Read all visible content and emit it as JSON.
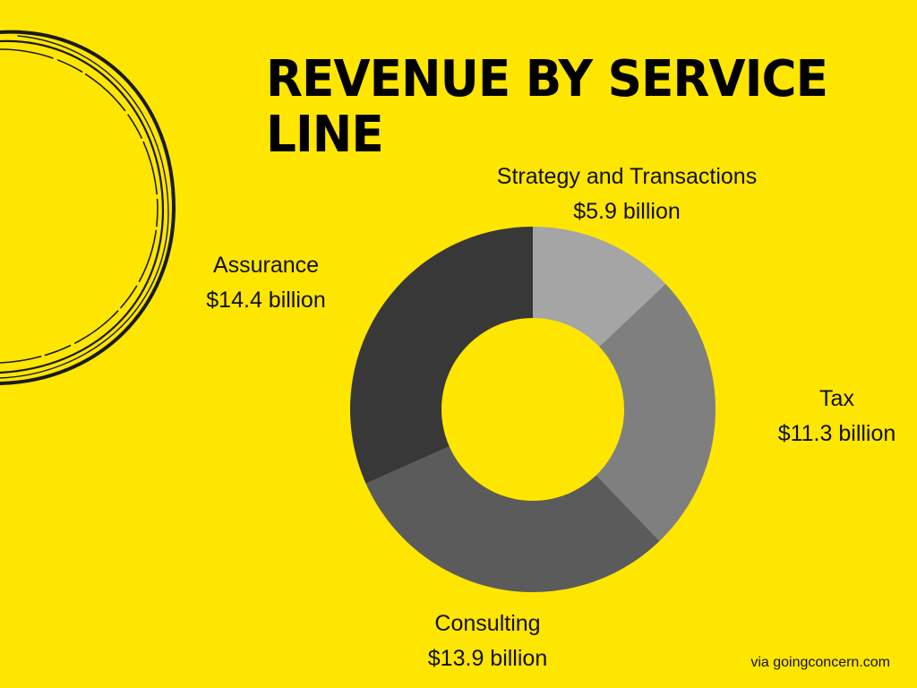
{
  "title": "REVENUE BY SERVICE LINE",
  "source": "via goingconcern.com",
  "colors": {
    "background": "#FFE600",
    "title": "#000000",
    "decoration": "#1a1a1a"
  },
  "labels": {
    "strategy": {
      "name": "Strategy and Transactions",
      "value": "$5.9 billion"
    },
    "tax": {
      "name": "Tax",
      "value": "$11.3 billion"
    },
    "consulting": {
      "name": "Consulting",
      "value": "$13.9 billion"
    },
    "assurance": {
      "name": "Assurance",
      "value": "$14.4 billion"
    }
  },
  "chart_data": {
    "type": "pie",
    "subtype": "donut",
    "title": "REVENUE BY SERVICE LINE",
    "unit": "billion USD",
    "categories": [
      "Strategy and Transactions",
      "Tax",
      "Consulting",
      "Assurance"
    ],
    "values": [
      5.9,
      11.3,
      13.9,
      14.4
    ],
    "colors": [
      "#A5A5A5",
      "#7F7F7F",
      "#5B5B5B",
      "#383838"
    ],
    "start_angle": "12 o'clock",
    "direction": "clockwise",
    "legend": "none (data labels outside slices)",
    "center": [
      595,
      457
    ],
    "outer_radius": 204,
    "inner_radius": 102
  }
}
